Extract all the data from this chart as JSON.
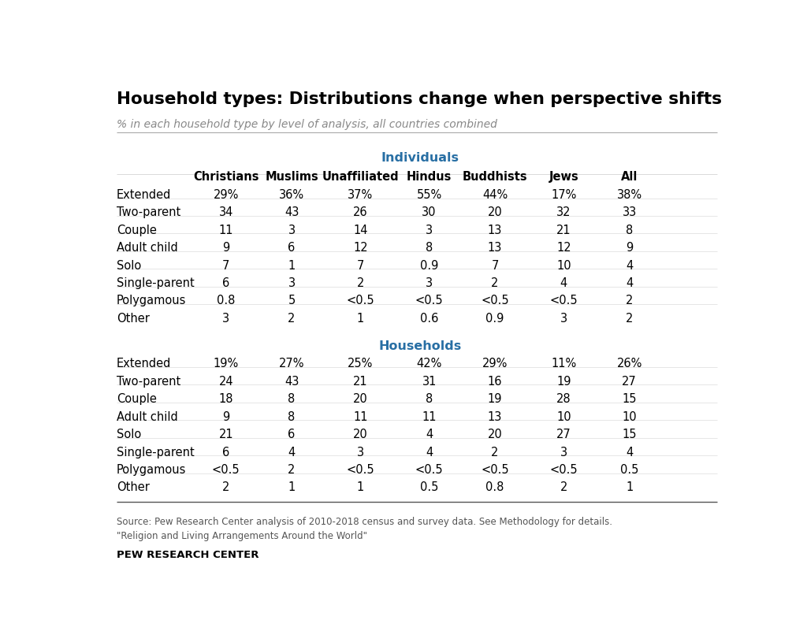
{
  "title": "Household types: Distributions change when perspective shifts",
  "subtitle": "% in each household type by level of analysis, all countries combined",
  "columns": [
    "Christians",
    "Muslims",
    "Unaffiliated",
    "Hindus",
    "Buddhists",
    "Jews",
    "All"
  ],
  "section1_label": "Individuals",
  "section1_rows": [
    [
      "Extended",
      "29%",
      "36%",
      "37%",
      "55%",
      "44%",
      "17%",
      "38%"
    ],
    [
      "Two-parent",
      "34",
      "43",
      "26",
      "30",
      "20",
      "32",
      "33"
    ],
    [
      "Couple",
      "11",
      "3",
      "14",
      "3",
      "13",
      "21",
      "8"
    ],
    [
      "Adult child",
      "9",
      "6",
      "12",
      "8",
      "13",
      "12",
      "9"
    ],
    [
      "Solo",
      "7",
      "1",
      "7",
      "0.9",
      "7",
      "10",
      "4"
    ],
    [
      "Single-parent",
      "6",
      "3",
      "2",
      "3",
      "2",
      "4",
      "4"
    ],
    [
      "Polygamous",
      "0.8",
      "5",
      "<0.5",
      "<0.5",
      "<0.5",
      "<0.5",
      "2"
    ],
    [
      "Other",
      "3",
      "2",
      "1",
      "0.6",
      "0.9",
      "3",
      "2"
    ]
  ],
  "section2_label": "Households",
  "section2_rows": [
    [
      "Extended",
      "19%",
      "27%",
      "25%",
      "42%",
      "29%",
      "11%",
      "26%"
    ],
    [
      "Two-parent",
      "24",
      "43",
      "21",
      "31",
      "16",
      "19",
      "27"
    ],
    [
      "Couple",
      "18",
      "8",
      "20",
      "8",
      "19",
      "28",
      "15"
    ],
    [
      "Adult child",
      "9",
      "8",
      "11",
      "11",
      "13",
      "10",
      "10"
    ],
    [
      "Solo",
      "21",
      "6",
      "20",
      "4",
      "20",
      "27",
      "15"
    ],
    [
      "Single-parent",
      "6",
      "4",
      "3",
      "4",
      "2",
      "3",
      "4"
    ],
    [
      "Polygamous",
      "<0.5",
      "2",
      "<0.5",
      "<0.5",
      "<0.5",
      "<0.5",
      "0.5"
    ],
    [
      "Other",
      "2",
      "1",
      "1",
      "0.5",
      "0.8",
      "2",
      "1"
    ]
  ],
  "source_line1": "Source: Pew Research Center analysis of 2010-2018 census and survey data. See Methodology for details.",
  "source_line2": "\"Religion and Living Arrangements Around the World\"",
  "footer_text": "PEW RESEARCH CENTER",
  "section_color": "#286FA4",
  "title_color": "#000000",
  "subtitle_color": "#888888",
  "header_color": "#000000",
  "row_label_color": "#000000",
  "data_color": "#000000",
  "bg_color": "#ffffff",
  "divider_color": "#cccccc",
  "bottom_line_color": "#555555"
}
